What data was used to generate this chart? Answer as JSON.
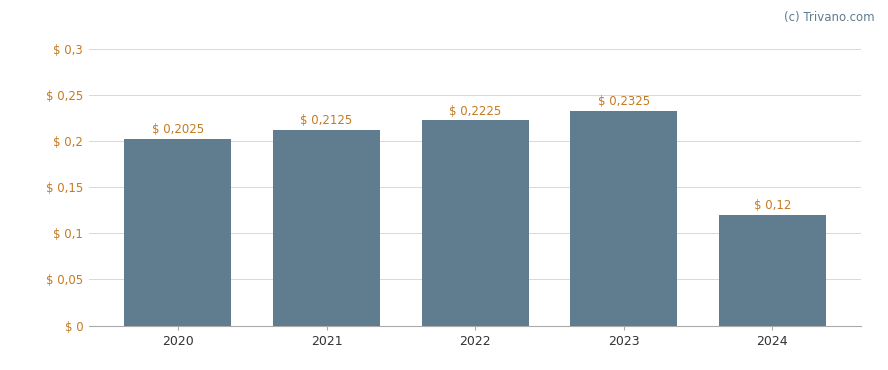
{
  "categories": [
    "2020",
    "2021",
    "2022",
    "2023",
    "2024"
  ],
  "values": [
    0.2025,
    0.2125,
    0.2225,
    0.2325,
    0.12
  ],
  "bar_labels": [
    "$ 0,2025",
    "$ 0,2125",
    "$ 0,2225",
    "$ 0,2325",
    "$ 0,12"
  ],
  "bar_color": "#5f7d8e",
  "background_color": "#ffffff",
  "ylim": [
    0,
    0.325
  ],
  "yticks": [
    0,
    0.05,
    0.1,
    0.15,
    0.2,
    0.25,
    0.3
  ],
  "ytick_labels": [
    "$ 0",
    "$ 0,05",
    "$ 0,1",
    "$ 0,15",
    "$ 0,2",
    "$ 0,25",
    "$ 0,3"
  ],
  "label_color": "#c47a20",
  "tick_color": "#c47a20",
  "watermark": "(c) Trivano.com",
  "watermark_color": "#5f7d8e",
  "grid_color": "#d8d8d8",
  "bar_width": 0.72,
  "label_fontsize": 8.5,
  "tick_fontsize": 8.5,
  "xtick_fontsize": 9.0,
  "xtick_color": "#333333"
}
